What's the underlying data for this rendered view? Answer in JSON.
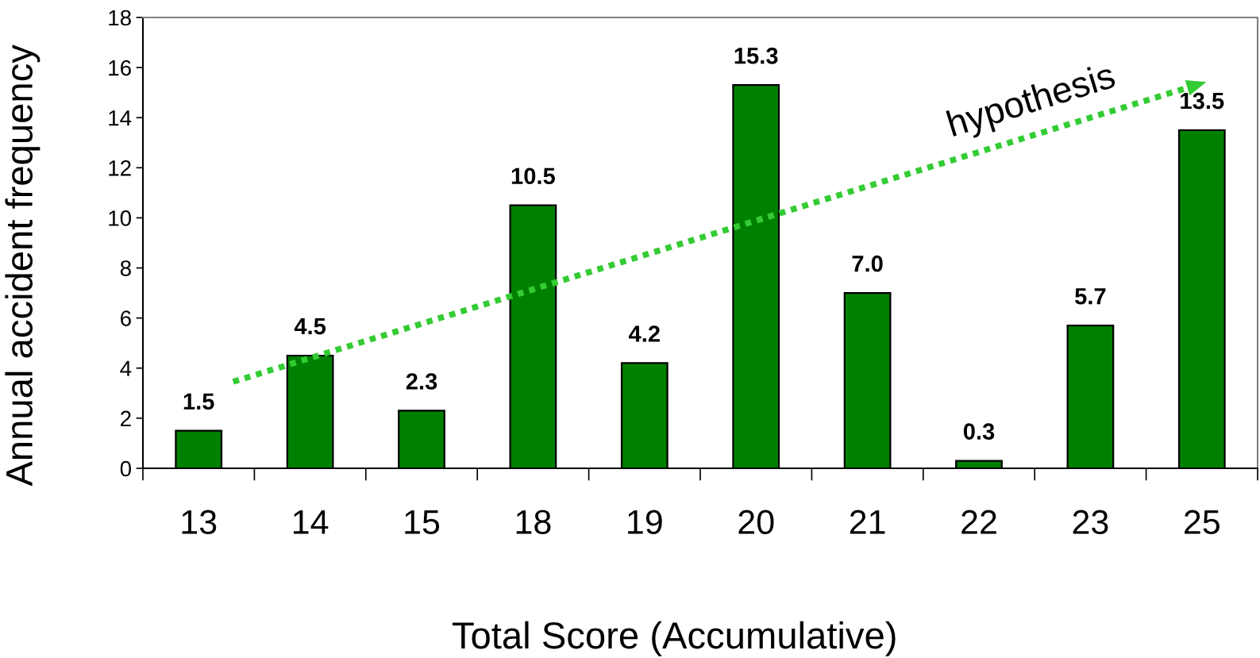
{
  "chart_data": {
    "type": "bar",
    "xlabel": "Total Score (Accumulative)",
    "ylabel": "Annual accident frequency",
    "categories": [
      "13",
      "14",
      "15",
      "18",
      "19",
      "20",
      "21",
      "22",
      "23",
      "25"
    ],
    "values": [
      1.5,
      4.5,
      2.3,
      10.5,
      4.2,
      15.3,
      7.0,
      0.3,
      5.7,
      13.5
    ],
    "value_labels": [
      "1.5",
      "4.5",
      "2.3",
      "10.5",
      "4.2",
      "15.3",
      "7.0",
      "0.3",
      "5.7",
      "13.5"
    ],
    "color": "#008000",
    "ylim": [
      0,
      18
    ],
    "yticks": [
      0,
      2,
      4,
      6,
      8,
      10,
      12,
      14,
      16,
      18
    ],
    "annotations": [
      "hypothesis"
    ]
  }
}
